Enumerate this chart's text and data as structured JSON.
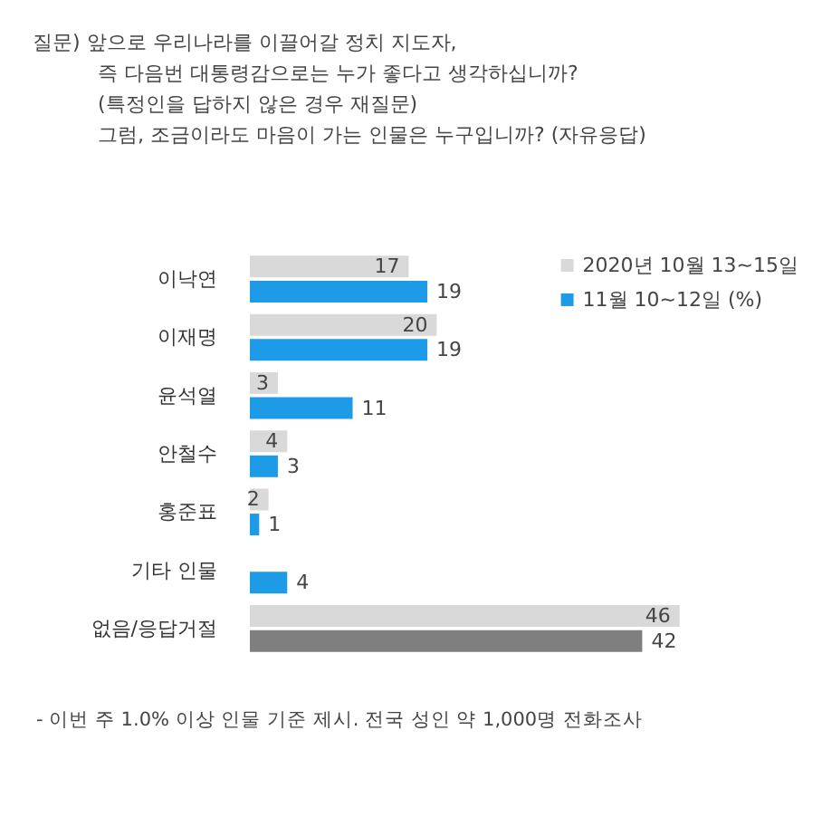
{
  "chart_data": {
    "type": "bar",
    "orientation": "horizontal",
    "title": "질문) 앞으로 우리나라를 이끌어갈 정치 지도자,\n즉 다음번 대통령감으로는 누가 좋다고 생각하십니까?\n(특정인을 답하지 않은 경우 재질문)\n그럼, 조금이라도 마음이 가는 인물은 누구입니까? (자유응답)",
    "categories": [
      "이낙연",
      "이재명",
      "윤석열",
      "안철수",
      "홍준표",
      "기타 인물",
      "없음/응답거절"
    ],
    "series": [
      {
        "name": "2020년 10월 13~15일",
        "color": "#d9d9d9",
        "colors": [
          "#d9d9d9",
          "#d9d9d9",
          "#d9d9d9",
          "#d9d9d9",
          "#d9d9d9",
          "#d9d9d9",
          "#d9d9d9"
        ],
        "values": [
          17,
          20,
          3,
          4,
          2,
          null,
          46
        ]
      },
      {
        "name": "11월 10~12일 (%)",
        "color": "#1e9be6",
        "colors": [
          "#1e9be6",
          "#1e9be6",
          "#1e9be6",
          "#1e9be6",
          "#1e9be6",
          "#1e9be6",
          "#7f7f7f"
        ],
        "values": [
          19,
          19,
          11,
          3,
          1,
          4,
          42
        ]
      }
    ],
    "data_labels": true,
    "legend": "top right",
    "tick_labels": "y",
    "annotations": [
      "- 이번 주 1.0% 이상 인물 기준 제시. 전국 성인 약 1,000명 전화조사"
    ]
  }
}
